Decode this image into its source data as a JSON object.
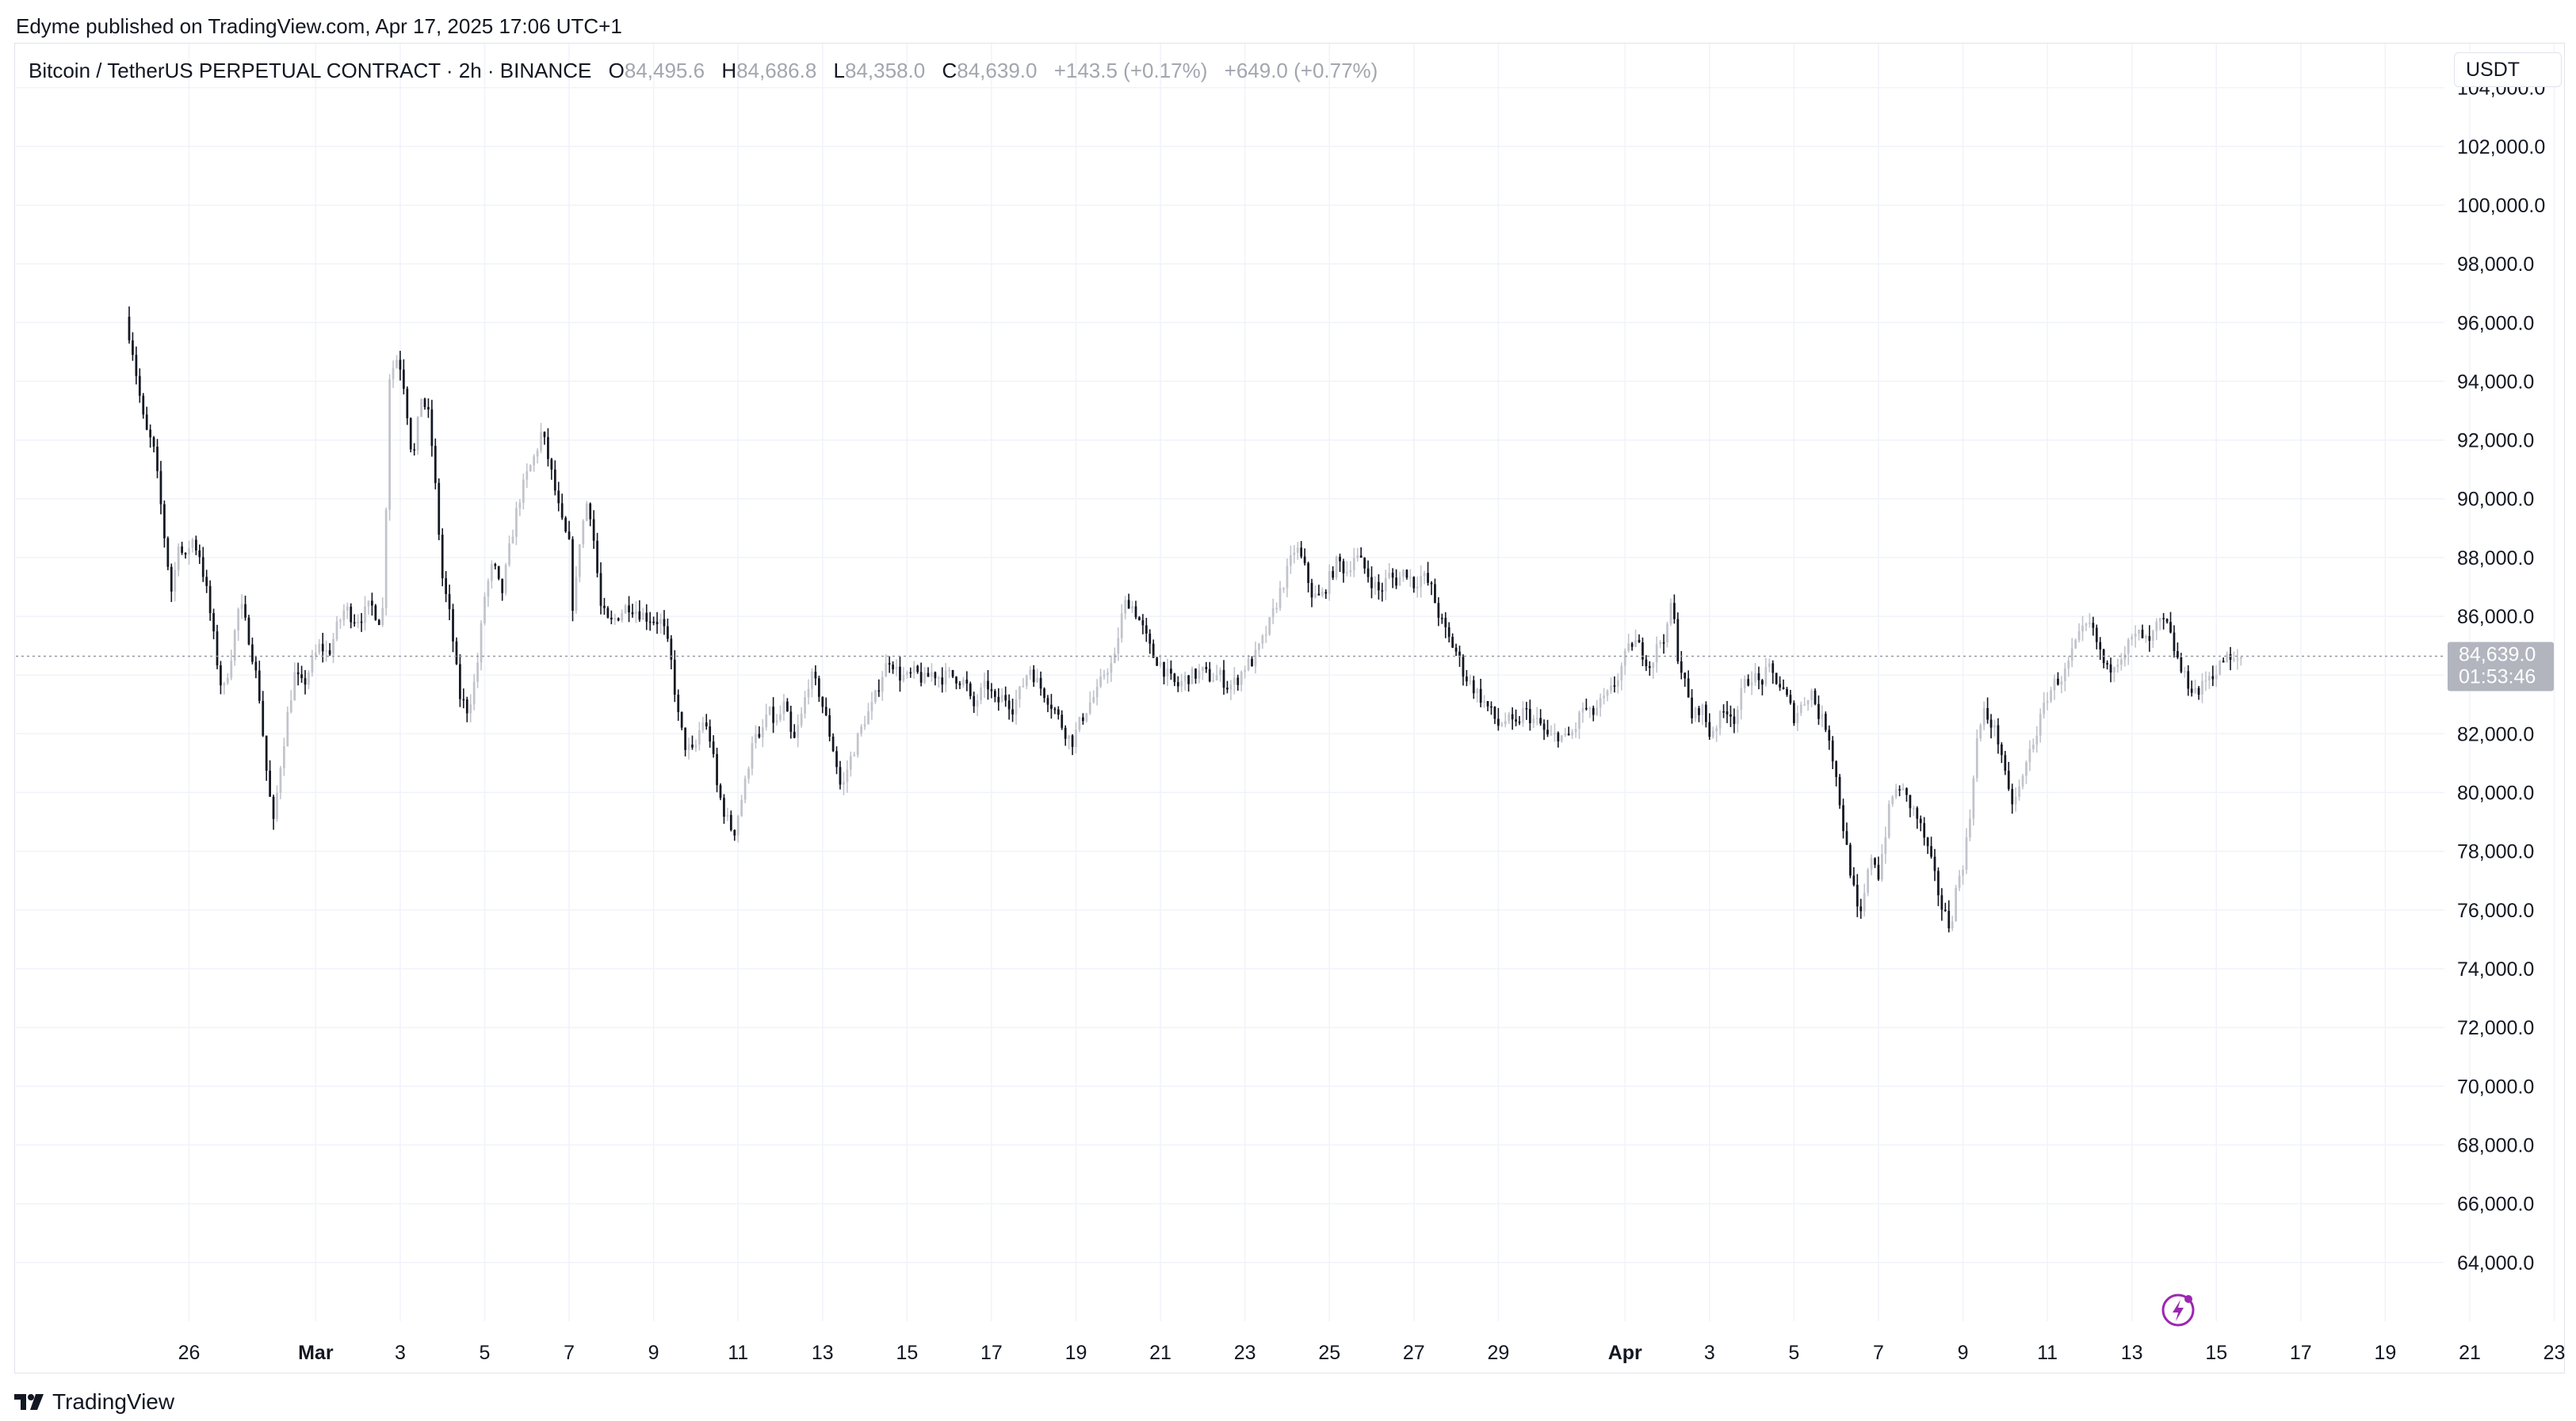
{
  "publisher": "Edyme published on TradingView.com, Apr 17, 2025 17:06 UTC+1",
  "legend": {
    "symbol": "Bitcoin / TetherUS PERPETUAL CONTRACT · 2h · BINANCE",
    "o_label": "O",
    "o_value": "84,495.6",
    "h_label": "H",
    "h_value": "84,686.8",
    "l_label": "L",
    "l_value": "84,358.0",
    "c_label": "C",
    "c_value": "84,639.0",
    "change": "+143.5 (+0.17%)",
    "change2": "+649.0 (+0.77%)"
  },
  "currency": "USDT",
  "footer_logo_text": "TradingView",
  "colors": {
    "up": "#c2c4cc",
    "down": "#131722",
    "grid": "#f0f3fa",
    "price_label_bg": "#b2b5be"
  },
  "chart_data": {
    "type": "candlestick",
    "title": "Bitcoin / TetherUS PERPETUAL CONTRACT · 2h · BINANCE",
    "ylim": [
      62000,
      105500
    ],
    "x_domain_days": [
      -4.1,
      53.4
    ],
    "y_ticks": [
      "104,000.0",
      "102,000.0",
      "100,000.0",
      "98,000.0",
      "96,000.0",
      "94,000.0",
      "92,000.0",
      "90,000.0",
      "88,000.0",
      "86,000.0",
      "84,000.0",
      "82,000.0",
      "80,000.0",
      "78,000.0",
      "76,000.0",
      "74,000.0",
      "72,000.0",
      "70,000.0",
      "68,000.0",
      "66,000.0",
      "64,000.0"
    ],
    "y_tick_values": [
      104000,
      102000,
      100000,
      98000,
      96000,
      94000,
      92000,
      90000,
      88000,
      86000,
      84000,
      82000,
      80000,
      78000,
      76000,
      74000,
      72000,
      70000,
      68000,
      66000,
      64000
    ],
    "x_ticks": [
      {
        "label": "26",
        "day": 0,
        "bold": false
      },
      {
        "label": "Mar",
        "day": 3,
        "bold": true
      },
      {
        "label": "3",
        "day": 5,
        "bold": false
      },
      {
        "label": "5",
        "day": 7,
        "bold": false
      },
      {
        "label": "7",
        "day": 9,
        "bold": false
      },
      {
        "label": "9",
        "day": 11,
        "bold": false
      },
      {
        "label": "11",
        "day": 13,
        "bold": false
      },
      {
        "label": "13",
        "day": 15,
        "bold": false
      },
      {
        "label": "15",
        "day": 17,
        "bold": false
      },
      {
        "label": "17",
        "day": 19,
        "bold": false
      },
      {
        "label": "19",
        "day": 21,
        "bold": false
      },
      {
        "label": "21",
        "day": 23,
        "bold": false
      },
      {
        "label": "23",
        "day": 25,
        "bold": false
      },
      {
        "label": "25",
        "day": 27,
        "bold": false
      },
      {
        "label": "27",
        "day": 29,
        "bold": false
      },
      {
        "label": "29",
        "day": 31,
        "bold": false
      },
      {
        "label": "Apr",
        "day": 34,
        "bold": true
      },
      {
        "label": "3",
        "day": 36,
        "bold": false
      },
      {
        "label": "5",
        "day": 38,
        "bold": false
      },
      {
        "label": "7",
        "day": 40,
        "bold": false
      },
      {
        "label": "9",
        "day": 42,
        "bold": false
      },
      {
        "label": "11",
        "day": 44,
        "bold": false
      },
      {
        "label": "13",
        "day": 46,
        "bold": false
      },
      {
        "label": "15",
        "day": 48,
        "bold": false
      },
      {
        "label": "17",
        "day": 50,
        "bold": false
      },
      {
        "label": "19",
        "day": 52,
        "bold": false
      },
      {
        "label": "21",
        "day": 54,
        "bold": false
      },
      {
        "label": "23",
        "day": 56,
        "bold": false
      }
    ],
    "last_price": 84639.0,
    "last_price_label": "84,639.0",
    "countdown_label": "01:53:46",
    "close_path": [
      [
        -1.5,
        96200
      ],
      [
        -1.35,
        95200
      ],
      [
        -1.2,
        93800
      ],
      [
        -1.05,
        92400
      ],
      [
        -0.85,
        91800
      ],
      [
        -0.7,
        90200
      ],
      [
        -0.55,
        88300
      ],
      [
        -0.4,
        86700
      ],
      [
        -0.25,
        88600
      ],
      [
        -0.1,
        87800
      ],
      [
        0.05,
        88700
      ],
      [
        0.25,
        88100
      ],
      [
        0.45,
        86600
      ],
      [
        0.65,
        84600
      ],
      [
        0.8,
        83300
      ],
      [
        1.0,
        84700
      ],
      [
        1.2,
        86500
      ],
      [
        1.45,
        85100
      ],
      [
        1.65,
        83500
      ],
      [
        1.85,
        80500
      ],
      [
        2.0,
        78900
      ],
      [
        2.15,
        80800
      ],
      [
        2.35,
        82800
      ],
      [
        2.5,
        84000
      ],
      [
        2.7,
        83600
      ],
      [
        2.9,
        84400
      ],
      [
        3.1,
        85000
      ],
      [
        3.3,
        84700
      ],
      [
        3.5,
        85600
      ],
      [
        3.7,
        86300
      ],
      [
        3.9,
        85900
      ],
      [
        4.1,
        86000
      ],
      [
        4.3,
        86400
      ],
      [
        4.5,
        85900
      ],
      [
        4.6,
        86300
      ],
      [
        4.75,
        94200
      ],
      [
        4.95,
        94900
      ],
      [
        5.1,
        93800
      ],
      [
        5.3,
        91200
      ],
      [
        5.5,
        93500
      ],
      [
        5.7,
        92700
      ],
      [
        5.85,
        90100
      ],
      [
        6.0,
        87300
      ],
      [
        6.2,
        85800
      ],
      [
        6.4,
        83300
      ],
      [
        6.6,
        82800
      ],
      [
        6.8,
        84000
      ],
      [
        7.0,
        86700
      ],
      [
        7.2,
        87800
      ],
      [
        7.4,
        86700
      ],
      [
        7.6,
        88400
      ],
      [
        7.8,
        89900
      ],
      [
        8.0,
        90800
      ],
      [
        8.2,
        91500
      ],
      [
        8.35,
        92300
      ],
      [
        8.5,
        91400
      ],
      [
        8.65,
        90400
      ],
      [
        8.8,
        89300
      ],
      [
        9.0,
        88400
      ],
      [
        9.1,
        86000
      ],
      [
        9.25,
        88600
      ],
      [
        9.45,
        90100
      ],
      [
        9.6,
        88400
      ],
      [
        9.75,
        86300
      ],
      [
        9.95,
        85700
      ],
      [
        10.2,
        86100
      ],
      [
        10.4,
        86400
      ],
      [
        10.6,
        86200
      ],
      [
        10.8,
        86000
      ],
      [
        11.0,
        85900
      ],
      [
        11.2,
        85800
      ],
      [
        11.4,
        84600
      ],
      [
        11.6,
        82400
      ],
      [
        11.75,
        81600
      ],
      [
        11.95,
        81300
      ],
      [
        12.15,
        82500
      ],
      [
        12.35,
        81800
      ],
      [
        12.5,
        80200
      ],
      [
        12.7,
        79200
      ],
      [
        12.9,
        78600
      ],
      [
        13.05,
        79600
      ],
      [
        13.2,
        80500
      ],
      [
        13.35,
        82000
      ],
      [
        13.5,
        81700
      ],
      [
        13.7,
        82800
      ],
      [
        13.9,
        82300
      ],
      [
        14.1,
        83000
      ],
      [
        14.3,
        81600
      ],
      [
        14.5,
        82600
      ],
      [
        14.7,
        84000
      ],
      [
        14.9,
        83500
      ],
      [
        15.1,
        82400
      ],
      [
        15.3,
        81200
      ],
      [
        15.45,
        80000
      ],
      [
        15.6,
        80900
      ],
      [
        15.8,
        81700
      ],
      [
        16.0,
        82500
      ],
      [
        16.2,
        83000
      ],
      [
        16.4,
        84000
      ],
      [
        16.6,
        84600
      ],
      [
        16.8,
        84000
      ],
      [
        17.0,
        83900
      ],
      [
        17.2,
        84100
      ],
      [
        17.4,
        83800
      ],
      [
        17.6,
        84100
      ],
      [
        17.8,
        83900
      ],
      [
        18.0,
        84000
      ],
      [
        18.2,
        83900
      ],
      [
        18.4,
        83700
      ],
      [
        18.55,
        82800
      ],
      [
        18.7,
        83300
      ],
      [
        18.9,
        83700
      ],
      [
        19.1,
        83000
      ],
      [
        19.3,
        83300
      ],
      [
        19.5,
        82900
      ],
      [
        19.7,
        83500
      ],
      [
        19.9,
        84300
      ],
      [
        20.1,
        83700
      ],
      [
        20.3,
        83300
      ],
      [
        20.5,
        82800
      ],
      [
        20.7,
        82200
      ],
      [
        20.9,
        81700
      ],
      [
        21.1,
        82400
      ],
      [
        21.3,
        83000
      ],
      [
        21.5,
        83400
      ],
      [
        21.7,
        84200
      ],
      [
        21.9,
        84400
      ],
      [
        22.05,
        85800
      ],
      [
        22.2,
        86600
      ],
      [
        22.4,
        86200
      ],
      [
        22.6,
        85500
      ],
      [
        22.8,
        84700
      ],
      [
        23.0,
        84400
      ],
      [
        23.2,
        83900
      ],
      [
        23.4,
        83600
      ],
      [
        23.6,
        83900
      ],
      [
        23.8,
        84000
      ],
      [
        24.0,
        84100
      ],
      [
        24.2,
        83900
      ],
      [
        24.4,
        84000
      ],
      [
        24.6,
        83600
      ],
      [
        24.8,
        83800
      ],
      [
        25.0,
        84300
      ],
      [
        25.2,
        84500
      ],
      [
        25.4,
        85100
      ],
      [
        25.6,
        85800
      ],
      [
        25.8,
        86700
      ],
      [
        26.0,
        87500
      ],
      [
        26.2,
        88400
      ],
      [
        26.4,
        87700
      ],
      [
        26.6,
        86700
      ],
      [
        26.8,
        86600
      ],
      [
        27.0,
        87300
      ],
      [
        27.2,
        87900
      ],
      [
        27.4,
        87500
      ],
      [
        27.6,
        88100
      ],
      [
        27.8,
        87700
      ],
      [
        28.0,
        87200
      ],
      [
        28.2,
        86800
      ],
      [
        28.4,
        87400
      ],
      [
        28.6,
        87200
      ],
      [
        28.8,
        87600
      ],
      [
        29.0,
        87100
      ],
      [
        29.2,
        87400
      ],
      [
        29.4,
        87000
      ],
      [
        29.6,
        86000
      ],
      [
        29.8,
        85300
      ],
      [
        30.0,
        84800
      ],
      [
        30.2,
        84000
      ],
      [
        30.4,
        83600
      ],
      [
        30.6,
        83200
      ],
      [
        30.8,
        82800
      ],
      [
        31.0,
        82300
      ],
      [
        31.2,
        82500
      ],
      [
        31.4,
        82200
      ],
      [
        31.6,
        82800
      ],
      [
        31.8,
        82500
      ],
      [
        32.0,
        82300
      ],
      [
        32.2,
        81800
      ],
      [
        32.4,
        82000
      ],
      [
        32.6,
        81800
      ],
      [
        32.8,
        82100
      ],
      [
        33.0,
        82900
      ],
      [
        33.2,
        82600
      ],
      [
        33.4,
        83000
      ],
      [
        33.6,
        83300
      ],
      [
        33.8,
        83800
      ],
      [
        34.0,
        84600
      ],
      [
        34.2,
        85200
      ],
      [
        34.4,
        84800
      ],
      [
        34.6,
        84300
      ],
      [
        34.8,
        85100
      ],
      [
        35.0,
        85500
      ],
      [
        35.1,
        86600
      ],
      [
        35.25,
        84700
      ],
      [
        35.4,
        83800
      ],
      [
        35.6,
        82500
      ],
      [
        35.8,
        83000
      ],
      [
        36.0,
        82000
      ],
      [
        36.2,
        82400
      ],
      [
        36.4,
        82900
      ],
      [
        36.6,
        82500
      ],
      [
        36.8,
        83600
      ],
      [
        37.0,
        84000
      ],
      [
        37.2,
        83700
      ],
      [
        37.4,
        84200
      ],
      [
        37.6,
        83800
      ],
      [
        37.8,
        83300
      ],
      [
        38.0,
        82600
      ],
      [
        38.2,
        83000
      ],
      [
        38.4,
        83500
      ],
      [
        38.6,
        82600
      ],
      [
        38.8,
        82200
      ],
      [
        39.0,
        80500
      ],
      [
        39.2,
        78500
      ],
      [
        39.4,
        76800
      ],
      [
        39.55,
        75500
      ],
      [
        39.7,
        76800
      ],
      [
        39.85,
        78000
      ],
      [
        40.0,
        77200
      ],
      [
        40.15,
        78500
      ],
      [
        40.3,
        79800
      ],
      [
        40.5,
        80200
      ],
      [
        40.7,
        79700
      ],
      [
        40.9,
        79200
      ],
      [
        41.1,
        78400
      ],
      [
        41.3,
        77300
      ],
      [
        41.5,
        76100
      ],
      [
        41.7,
        75400
      ],
      [
        41.85,
        76800
      ],
      [
        42.0,
        77600
      ],
      [
        42.15,
        78900
      ],
      [
        42.3,
        81600
      ],
      [
        42.5,
        82700
      ],
      [
        42.7,
        82300
      ],
      [
        42.9,
        81500
      ],
      [
        43.05,
        80000
      ],
      [
        43.2,
        79600
      ],
      [
        43.4,
        80400
      ],
      [
        43.6,
        81500
      ],
      [
        43.8,
        82300
      ],
      [
        44.0,
        83300
      ],
      [
        44.2,
        83800
      ],
      [
        44.4,
        84000
      ],
      [
        44.6,
        84800
      ],
      [
        44.8,
        85400
      ],
      [
        45.0,
        85700
      ],
      [
        45.2,
        85000
      ],
      [
        45.4,
        84100
      ],
      [
        45.6,
        84500
      ],
      [
        45.8,
        84800
      ],
      [
        46.0,
        85200
      ],
      [
        46.2,
        85400
      ],
      [
        46.4,
        85000
      ],
      [
        46.6,
        85700
      ],
      [
        46.8,
        85800
      ],
      [
        47.0,
        84900
      ],
      [
        47.2,
        84000
      ],
      [
        47.4,
        83600
      ],
      [
        47.6,
        83400
      ],
      [
        47.8,
        84000
      ],
      [
        48.0,
        84100
      ],
      [
        48.2,
        84600
      ],
      [
        48.4,
        84400
      ],
      [
        48.6,
        84639
      ]
    ]
  }
}
